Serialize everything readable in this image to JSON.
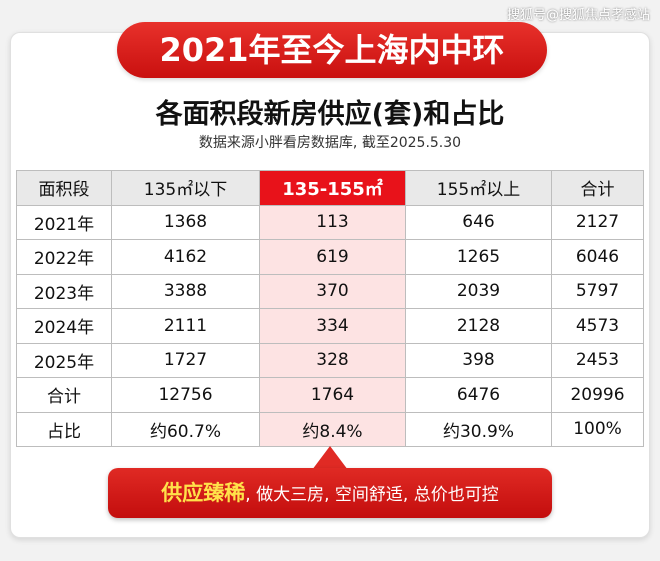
{
  "watermark": "搜狐号@搜狐焦点孝感站",
  "banner_title": "2021年至今上海内中环",
  "subtitle": "各面积段新房供应(套)和占比",
  "source": "数据来源小胖看房数据库, 截至2025.5.30",
  "table": {
    "headers": [
      "面积段",
      "135㎡以下",
      "135-155㎡",
      "155㎡以上",
      "合计"
    ],
    "rows": [
      [
        "2021年",
        "1368",
        "113",
        "646",
        "2127"
      ],
      [
        "2022年",
        "4162",
        "619",
        "1265",
        "6046"
      ],
      [
        "2023年",
        "3388",
        "370",
        "2039",
        "5797"
      ],
      [
        "2024年",
        "2111",
        "334",
        "2128",
        "4573"
      ],
      [
        "2025年",
        "1727",
        "328",
        "398",
        "2453"
      ],
      [
        "合计",
        "12756",
        "1764",
        "6476",
        "20996"
      ],
      [
        "占比",
        "约60.7%",
        "约8.4%",
        "约30.9%",
        "100%"
      ]
    ]
  },
  "callout": {
    "emphasis": "供应臻稀",
    "text": ", 做大三房, 空间舒适, 总价也可控"
  },
  "colors": {
    "accent_red": "#e8121a",
    "highlight_bg": "#fde3e3",
    "emphasis_yellow": "#ffe24a"
  }
}
